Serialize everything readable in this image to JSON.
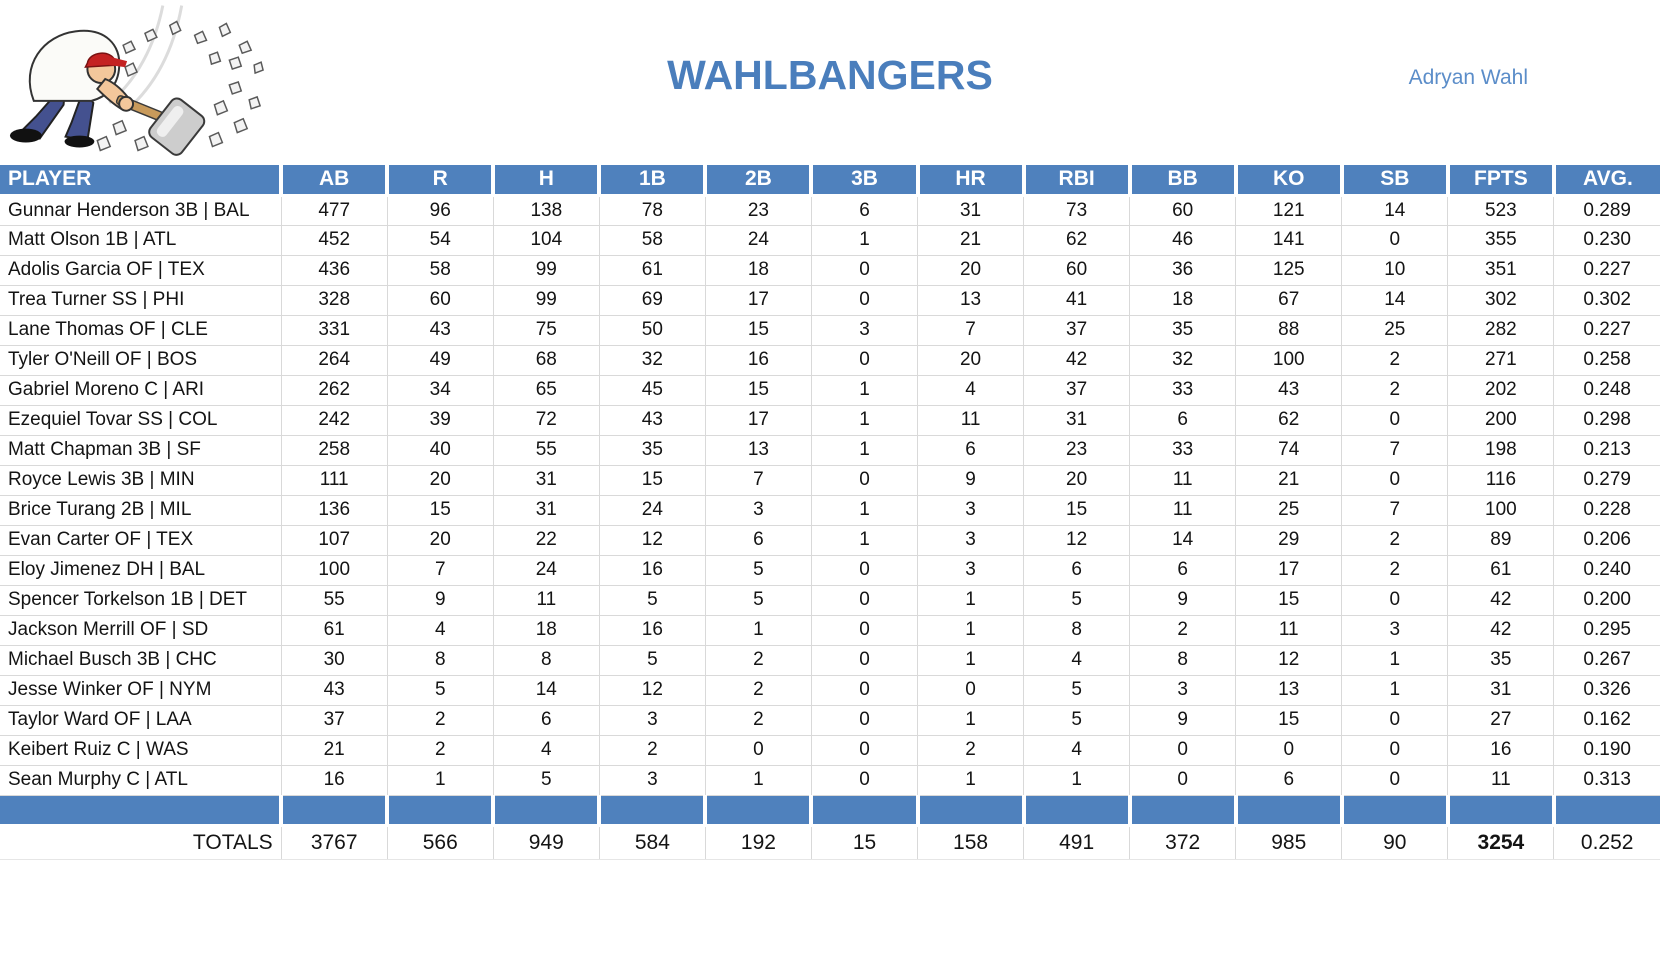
{
  "page": {
    "title": "WAHLBANGERS",
    "owner": "Adryan Wahl"
  },
  "logo": {
    "alt": "cartoon man in red cap smashing rocks with a sledgehammer"
  },
  "colors": {
    "header_blue": "#4f81bd",
    "title_blue": "#4a7ebc",
    "owner_blue": "#5b8dc9",
    "gridline_gray": "#d9d9d9"
  },
  "table": {
    "columns": [
      "PLAYER",
      "AB",
      "R",
      "H",
      "1B",
      "2B",
      "3B",
      "HR",
      "RBI",
      "BB",
      "KO",
      "SB",
      "FPTS",
      "AVG."
    ],
    "players": [
      {
        "name": "Gunnar Henderson 3B | BAL",
        "stats": [
          "477",
          "96",
          "138",
          "78",
          "23",
          "6",
          "31",
          "73",
          "60",
          "121",
          "14",
          "523",
          "0.289"
        ]
      },
      {
        "name": "Matt Olson 1B | ATL",
        "stats": [
          "452",
          "54",
          "104",
          "58",
          "24",
          "1",
          "21",
          "62",
          "46",
          "141",
          "0",
          "355",
          "0.230"
        ]
      },
      {
        "name": "Adolis Garcia OF | TEX",
        "stats": [
          "436",
          "58",
          "99",
          "61",
          "18",
          "0",
          "20",
          "60",
          "36",
          "125",
          "10",
          "351",
          "0.227"
        ]
      },
      {
        "name": "Trea Turner SS | PHI",
        "stats": [
          "328",
          "60",
          "99",
          "69",
          "17",
          "0",
          "13",
          "41",
          "18",
          "67",
          "14",
          "302",
          "0.302"
        ]
      },
      {
        "name": "Lane Thomas OF | CLE",
        "stats": [
          "331",
          "43",
          "75",
          "50",
          "15",
          "3",
          "7",
          "37",
          "35",
          "88",
          "25",
          "282",
          "0.227"
        ]
      },
      {
        "name": "Tyler O'Neill OF | BOS",
        "stats": [
          "264",
          "49",
          "68",
          "32",
          "16",
          "0",
          "20",
          "42",
          "32",
          "100",
          "2",
          "271",
          "0.258"
        ]
      },
      {
        "name": "Gabriel Moreno C | ARI",
        "stats": [
          "262",
          "34",
          "65",
          "45",
          "15",
          "1",
          "4",
          "37",
          "33",
          "43",
          "2",
          "202",
          "0.248"
        ]
      },
      {
        "name": "Ezequiel Tovar SS | COL",
        "stats": [
          "242",
          "39",
          "72",
          "43",
          "17",
          "1",
          "11",
          "31",
          "6",
          "62",
          "0",
          "200",
          "0.298"
        ]
      },
      {
        "name": "Matt Chapman 3B | SF",
        "stats": [
          "258",
          "40",
          "55",
          "35",
          "13",
          "1",
          "6",
          "23",
          "33",
          "74",
          "7",
          "198",
          "0.213"
        ]
      },
      {
        "name": "Royce Lewis 3B | MIN",
        "stats": [
          "111",
          "20",
          "31",
          "15",
          "7",
          "0",
          "9",
          "20",
          "11",
          "21",
          "0",
          "116",
          "0.279"
        ]
      },
      {
        "name": "Brice Turang 2B | MIL",
        "stats": [
          "136",
          "15",
          "31",
          "24",
          "3",
          "1",
          "3",
          "15",
          "11",
          "25",
          "7",
          "100",
          "0.228"
        ]
      },
      {
        "name": "Evan Carter OF | TEX",
        "stats": [
          "107",
          "20",
          "22",
          "12",
          "6",
          "1",
          "3",
          "12",
          "14",
          "29",
          "2",
          "89",
          "0.206"
        ]
      },
      {
        "name": "Eloy Jimenez DH | BAL",
        "stats": [
          "100",
          "7",
          "24",
          "16",
          "5",
          "0",
          "3",
          "6",
          "6",
          "17",
          "2",
          "61",
          "0.240"
        ]
      },
      {
        "name": "Spencer Torkelson 1B | DET",
        "stats": [
          "55",
          "9",
          "11",
          "5",
          "5",
          "0",
          "1",
          "5",
          "9",
          "15",
          "0",
          "42",
          "0.200"
        ]
      },
      {
        "name": "Jackson Merrill OF | SD",
        "stats": [
          "61",
          "4",
          "18",
          "16",
          "1",
          "0",
          "1",
          "8",
          "2",
          "11",
          "3",
          "42",
          "0.295"
        ]
      },
      {
        "name": "Michael Busch 3B | CHC",
        "stats": [
          "30",
          "8",
          "8",
          "5",
          "2",
          "0",
          "1",
          "4",
          "8",
          "12",
          "1",
          "35",
          "0.267"
        ]
      },
      {
        "name": "Jesse Winker OF | NYM",
        "stats": [
          "43",
          "5",
          "14",
          "12",
          "2",
          "0",
          "0",
          "5",
          "3",
          "13",
          "1",
          "31",
          "0.326"
        ]
      },
      {
        "name": "Taylor Ward OF | LAA",
        "stats": [
          "37",
          "2",
          "6",
          "3",
          "2",
          "0",
          "1",
          "5",
          "9",
          "15",
          "0",
          "27",
          "0.162"
        ]
      },
      {
        "name": "Keibert Ruiz C | WAS",
        "stats": [
          "21",
          "2",
          "4",
          "2",
          "0",
          "0",
          "2",
          "4",
          "0",
          "0",
          "0",
          "16",
          "0.190"
        ]
      },
      {
        "name": "Sean Murphy C | ATL",
        "stats": [
          "16",
          "1",
          "5",
          "3",
          "1",
          "0",
          "1",
          "1",
          "0",
          "6",
          "0",
          "11",
          "0.313"
        ]
      }
    ],
    "totals": {
      "label": "TOTALS",
      "values": [
        "3767",
        "566",
        "949",
        "584",
        "192",
        "15",
        "158",
        "491",
        "372",
        "985",
        "90",
        "3254",
        "0.252"
      ]
    }
  }
}
